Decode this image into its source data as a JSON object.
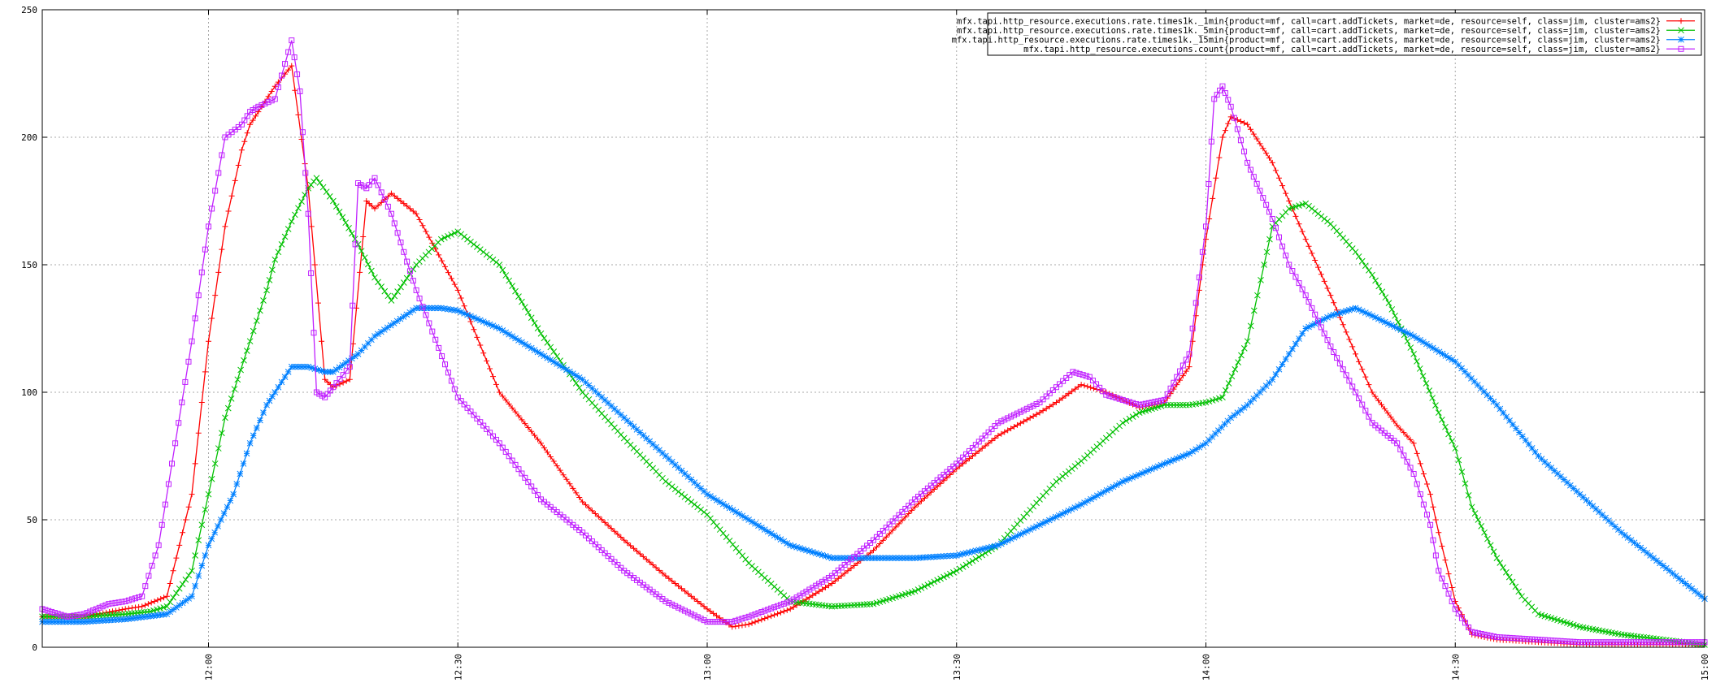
{
  "chart_data": {
    "type": "line",
    "title": "",
    "xlabel": "",
    "ylabel": "",
    "ylim": [
      0,
      250
    ],
    "xlim": [
      "11:40",
      "15:00"
    ],
    "yticks": [
      0,
      50,
      100,
      150,
      200,
      250
    ],
    "xticks": [
      "12:00",
      "12:30",
      "13:00",
      "13:30",
      "14:00",
      "14:30",
      "15:00"
    ],
    "grid": true,
    "legend_position": "top-right",
    "series": [
      {
        "name": "mfx.tapi.http_resource.executions.rate.times1k._1min{product=mf, call=cart.addTickets, market=de, resource=self, class=jim, cluster=ams2}",
        "color": "#ff0000",
        "marker": "plus",
        "x": [
          "11:40",
          "11:45",
          "11:50",
          "11:52",
          "11:55",
          "11:58",
          "12:00",
          "12:02",
          "12:04",
          "12:05",
          "12:06",
          "12:08",
          "12:10",
          "12:12",
          "12:14",
          "12:15",
          "12:17",
          "12:19",
          "12:20",
          "12:22",
          "12:25",
          "12:30",
          "12:35",
          "12:40",
          "12:45",
          "12:50",
          "12:55",
          "13:00",
          "13:03",
          "13:05",
          "13:10",
          "13:15",
          "13:20",
          "13:25",
          "13:30",
          "13:35",
          "13:40",
          "13:42",
          "13:45",
          "13:48",
          "13:50",
          "13:52",
          "13:55",
          "13:58",
          "14:00",
          "14:02",
          "14:03",
          "14:05",
          "14:08",
          "14:10",
          "14:12",
          "14:15",
          "14:18",
          "14:20",
          "14:23",
          "14:25",
          "14:27",
          "14:28",
          "14:30",
          "14:32",
          "14:35",
          "14:40",
          "14:45",
          "14:50",
          "14:55",
          "15:00"
        ],
        "y": [
          12,
          12,
          15,
          16,
          20,
          60,
          120,
          165,
          195,
          205,
          210,
          220,
          228,
          180,
          105,
          102,
          105,
          175,
          172,
          178,
          170,
          140,
          100,
          80,
          57,
          42,
          28,
          15,
          8,
          9,
          15,
          25,
          38,
          55,
          70,
          83,
          92,
          96,
          103,
          100,
          97,
          94,
          96,
          110,
          160,
          200,
          208,
          205,
          190,
          175,
          160,
          138,
          115,
          100,
          87,
          80,
          60,
          45,
          18,
          5,
          3,
          2,
          1,
          1,
          1,
          1
        ],
        "values": [
          12,
          12,
          15,
          16,
          20,
          60,
          120,
          165,
          195,
          205,
          210,
          220,
          228,
          180,
          105,
          102,
          105,
          175,
          172,
          178,
          170,
          140,
          100,
          80,
          57,
          42,
          28,
          15,
          8,
          9,
          15,
          25,
          38,
          55,
          70,
          83,
          92,
          96,
          103,
          100,
          97,
          94,
          96,
          110,
          160,
          200,
          208,
          205,
          190,
          175,
          160,
          138,
          115,
          100,
          87,
          80,
          60,
          45,
          18,
          5,
          3,
          2,
          1,
          1,
          1,
          1
        ]
      },
      {
        "name": "mfx.tapi.http_resource.executions.rate.times1k._5min{product=mf, call=cart.addTickets, market=de, resource=self, class=jim, cluster=ams2}",
        "color": "#00c000",
        "marker": "cross",
        "x": [
          "11:40",
          "11:45",
          "11:50",
          "11:53",
          "11:55",
          "11:58",
          "12:00",
          "12:02",
          "12:05",
          "12:07",
          "12:08",
          "12:10",
          "12:12",
          "12:13",
          "12:15",
          "12:18",
          "12:20",
          "12:22",
          "12:25",
          "12:28",
          "12:30",
          "12:35",
          "12:40",
          "12:45",
          "12:50",
          "12:55",
          "13:00",
          "13:05",
          "13:10",
          "13:15",
          "13:20",
          "13:25",
          "13:30",
          "13:35",
          "13:40",
          "13:42",
          "13:45",
          "13:48",
          "13:50",
          "13:52",
          "13:55",
          "13:58",
          "14:00",
          "14:02",
          "14:05",
          "14:07",
          "14:08",
          "14:10",
          "14:12",
          "14:15",
          "14:18",
          "14:20",
          "14:22",
          "14:25",
          "14:28",
          "14:30",
          "14:32",
          "14:35",
          "14:38",
          "14:40",
          "14:45",
          "14:50",
          "14:55",
          "15:00"
        ],
        "y": [
          12,
          12,
          13,
          14,
          16,
          30,
          60,
          90,
          120,
          140,
          152,
          167,
          180,
          184,
          175,
          158,
          145,
          136,
          150,
          160,
          163,
          150,
          123,
          100,
          82,
          65,
          52,
          33,
          18,
          16,
          17,
          22,
          30,
          40,
          58,
          65,
          73,
          82,
          88,
          92,
          95,
          95,
          96,
          98,
          120,
          150,
          165,
          172,
          174,
          166,
          155,
          146,
          135,
          115,
          92,
          78,
          55,
          35,
          20,
          13,
          8,
          5,
          3,
          1
        ],
        "values": [
          12,
          12,
          13,
          14,
          16,
          30,
          60,
          90,
          120,
          140,
          152,
          167,
          180,
          184,
          175,
          158,
          145,
          136,
          150,
          160,
          163,
          150,
          123,
          100,
          82,
          65,
          52,
          33,
          18,
          16,
          17,
          22,
          30,
          40,
          58,
          65,
          73,
          82,
          88,
          92,
          95,
          95,
          96,
          98,
          120,
          150,
          165,
          172,
          174,
          166,
          155,
          146,
          135,
          115,
          92,
          78,
          55,
          35,
          20,
          13,
          8,
          5,
          3,
          1
        ]
      },
      {
        "name": "mfx.tapi.http_resource.executions.rate.times1k._15min{product=mf, call=cart.addTickets, market=de, resource=self, class=jim, cluster=ams2}",
        "color": "#0080ff",
        "marker": "star",
        "x": [
          "11:40",
          "11:45",
          "11:50",
          "11:55",
          "11:58",
          "12:00",
          "12:03",
          "12:05",
          "12:07",
          "12:08",
          "12:10",
          "12:12",
          "12:14",
          "12:15",
          "12:18",
          "12:20",
          "12:25",
          "12:28",
          "12:30",
          "12:35",
          "12:40",
          "12:45",
          "12:50",
          "12:55",
          "13:00",
          "13:05",
          "13:10",
          "13:15",
          "13:20",
          "13:25",
          "13:30",
          "13:35",
          "13:40",
          "13:45",
          "13:50",
          "13:55",
          "13:58",
          "14:00",
          "14:03",
          "14:05",
          "14:08",
          "14:10",
          "14:12",
          "14:15",
          "14:18",
          "14:20",
          "14:25",
          "14:30",
          "14:35",
          "14:40",
          "14:45",
          "14:50",
          "14:55",
          "15:00"
        ],
        "y": [
          10,
          10,
          11,
          13,
          20,
          40,
          60,
          80,
          95,
          100,
          110,
          110,
          108,
          108,
          115,
          122,
          133,
          133,
          132,
          125,
          115,
          105,
          90,
          75,
          60,
          50,
          40,
          35,
          35,
          35,
          36,
          40,
          48,
          56,
          65,
          72,
          76,
          80,
          90,
          95,
          105,
          115,
          125,
          130,
          133,
          130,
          122,
          112,
          95,
          75,
          60,
          45,
          32,
          19
        ],
        "values": [
          10,
          10,
          11,
          13,
          20,
          40,
          60,
          80,
          95,
          100,
          110,
          110,
          108,
          108,
          115,
          122,
          133,
          133,
          132,
          125,
          115,
          105,
          90,
          75,
          60,
          50,
          40,
          35,
          35,
          35,
          36,
          40,
          48,
          56,
          65,
          72,
          76,
          80,
          90,
          95,
          105,
          115,
          125,
          130,
          133,
          130,
          122,
          112,
          95,
          75,
          60,
          45,
          32,
          19
        ]
      },
      {
        "name": "mfx.tapi.http_resource.executions.count{product=mf, call=cart.addTickets, market=de, resource=self, class=jim, cluster=ams2}",
        "color": "#c020ff",
        "marker": "square",
        "x": [
          "11:40",
          "11:43",
          "11:45",
          "11:48",
          "11:50",
          "11:52",
          "11:54",
          "11:56",
          "11:58",
          "12:00",
          "12:02",
          "12:04",
          "12:05",
          "12:06",
          "12:08",
          "12:10",
          "12:11",
          "12:12",
          "12:13",
          "12:14",
          "12:15",
          "12:17",
          "12:18",
          "12:19",
          "12:20",
          "12:22",
          "12:25",
          "12:30",
          "12:35",
          "12:40",
          "12:45",
          "12:50",
          "12:55",
          "13:00",
          "13:03",
          "13:05",
          "13:10",
          "13:15",
          "13:20",
          "13:25",
          "13:30",
          "13:35",
          "13:40",
          "13:42",
          "13:44",
          "13:46",
          "13:48",
          "13:50",
          "13:52",
          "13:55",
          "13:58",
          "14:00",
          "14:01",
          "14:02",
          "14:03",
          "14:05",
          "14:08",
          "14:10",
          "14:12",
          "14:15",
          "14:18",
          "14:20",
          "14:23",
          "14:25",
          "14:27",
          "14:28",
          "14:30",
          "14:32",
          "14:35",
          "14:40",
          "14:45",
          "14:50",
          "14:55",
          "15:00"
        ],
        "y": [
          15,
          12,
          13,
          17,
          18,
          20,
          40,
          80,
          120,
          165,
          200,
          205,
          210,
          212,
          215,
          238,
          218,
          170,
          100,
          98,
          102,
          110,
          182,
          180,
          184,
          170,
          140,
          98,
          80,
          58,
          45,
          30,
          18,
          10,
          10,
          12,
          18,
          28,
          42,
          58,
          72,
          88,
          96,
          102,
          108,
          106,
          99,
          97,
          95,
          97,
          115,
          165,
          215,
          220,
          212,
          190,
          168,
          150,
          138,
          118,
          100,
          88,
          80,
          68,
          48,
          30,
          15,
          6,
          4,
          3,
          2,
          2,
          2,
          2
        ],
        "values": [
          15,
          12,
          13,
          17,
          18,
          20,
          40,
          80,
          120,
          165,
          200,
          205,
          210,
          212,
          215,
          238,
          218,
          170,
          100,
          98,
          102,
          110,
          182,
          180,
          184,
          170,
          140,
          98,
          80,
          58,
          45,
          30,
          18,
          10,
          10,
          12,
          18,
          28,
          42,
          58,
          72,
          88,
          96,
          102,
          108,
          106,
          99,
          97,
          95,
          97,
          115,
          165,
          215,
          220,
          212,
          190,
          168,
          150,
          138,
          118,
          100,
          88,
          80,
          68,
          48,
          30,
          15,
          6,
          4,
          3,
          2,
          2,
          2,
          2
        ]
      }
    ]
  }
}
